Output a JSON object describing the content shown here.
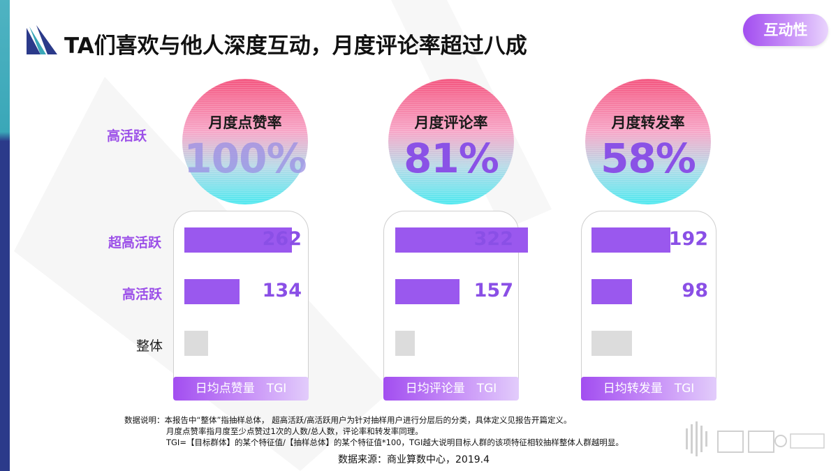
{
  "header": {
    "title": "TA们喜欢与他人深度互动，月度评论率超过八成",
    "pill": "互动性"
  },
  "rows": {
    "high_active": "高活跃",
    "super_active": "超高活跃",
    "high_active_2": "高活跃",
    "overall": "整体"
  },
  "chart_data": [
    {
      "type": "table",
      "title": "",
      "columns": [
        "月度点赞率",
        "月度评论率",
        "月度转发率"
      ],
      "rows": [
        {
          "name": "高活跃",
          "values": [
            "100%",
            "81%",
            "58%"
          ]
        }
      ]
    },
    {
      "type": "bar",
      "title": "",
      "xlabel": "日均点赞量 TGI",
      "categories": [
        "超高活跃",
        "高活跃",
        "整体"
      ],
      "values": [
        262,
        134,
        100
      ],
      "labels": [
        "262",
        "134",
        ""
      ]
    },
    {
      "type": "bar",
      "title": "",
      "xlabel": "日均评论量 TGI",
      "categories": [
        "超高活跃",
        "高活跃",
        "整体"
      ],
      "values": [
        322,
        157,
        100
      ],
      "labels": [
        "322",
        "157",
        ""
      ]
    },
    {
      "type": "bar",
      "title": "",
      "xlabel": "日均转发量 TGI",
      "categories": [
        "超高活跃",
        "高活跃",
        "整体"
      ],
      "values": [
        192,
        98,
        100
      ],
      "labels": [
        "192",
        "98",
        ""
      ]
    }
  ],
  "circles": [
    {
      "label": "月度点赞率",
      "value": "100%"
    },
    {
      "label": "月度评论率",
      "value": "81%"
    },
    {
      "label": "月度转发率",
      "value": "58%"
    }
  ],
  "panels": [
    {
      "footer": "日均点赞量　TGI",
      "v1": "262",
      "v2": "134"
    },
    {
      "footer": "日均评论量　TGI",
      "v1": "322",
      "v2": "157"
    },
    {
      "footer": "日均转发量　TGI",
      "v1": "192",
      "v2": "98"
    }
  ],
  "notes": {
    "line1": "数据说明：本报告中“整体”指抽样总体， 超高活跃/高活跃用户为针对抽样用户进行分层后的分类，具体定义见报告开篇定义。",
    "line2": "月度点赞率指月度至少点赞过1次的人数/总人数，评论率和转发率同理。",
    "line3": "TGI=【目标群体】的某个特征值/【抽样总体】的某个特征值*100，TGI越大说明目标人群的该项特征相较抽样整体人群越明显。",
    "source": "数据来源：商业算数中心，2019.4"
  },
  "colors": {
    "accent": "#9a58ee",
    "gray_bar": "#dcdcdc",
    "navy": "#2b3a8a",
    "teal": "#4fb3c2"
  }
}
